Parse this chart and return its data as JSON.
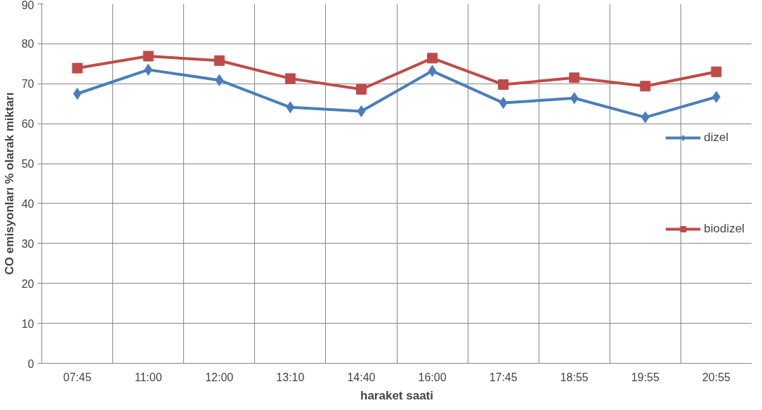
{
  "chart_data": {
    "type": "line",
    "xlabel": "haraket saati",
    "ylabel": "CO emisyonları % olarak miktarı",
    "categories": [
      "07:45",
      "11:00",
      "12:00",
      "13:10",
      "14:40",
      "16:00",
      "17:45",
      "18:55",
      "19:55",
      "20:55"
    ],
    "series": [
      {
        "name": "dizel",
        "color": "#4a7ebb",
        "marker": "diamond",
        "values": [
          67.5,
          73.5,
          70.9,
          64.1,
          63.1,
          73.2,
          65.2,
          66.4,
          61.6,
          66.7
        ]
      },
      {
        "name": "biodizel",
        "color": "#be4b48",
        "marker": "square",
        "values": [
          73.9,
          76.9,
          75.8,
          71.3,
          68.6,
          76.4,
          69.8,
          71.5,
          69.4,
          73.0
        ]
      }
    ],
    "ylim": [
      0,
      90
    ],
    "yticks": [
      0,
      10,
      20,
      30,
      40,
      50,
      60,
      70,
      80,
      90
    ],
    "grid": true,
    "legend": "right",
    "line_style": "solid"
  }
}
